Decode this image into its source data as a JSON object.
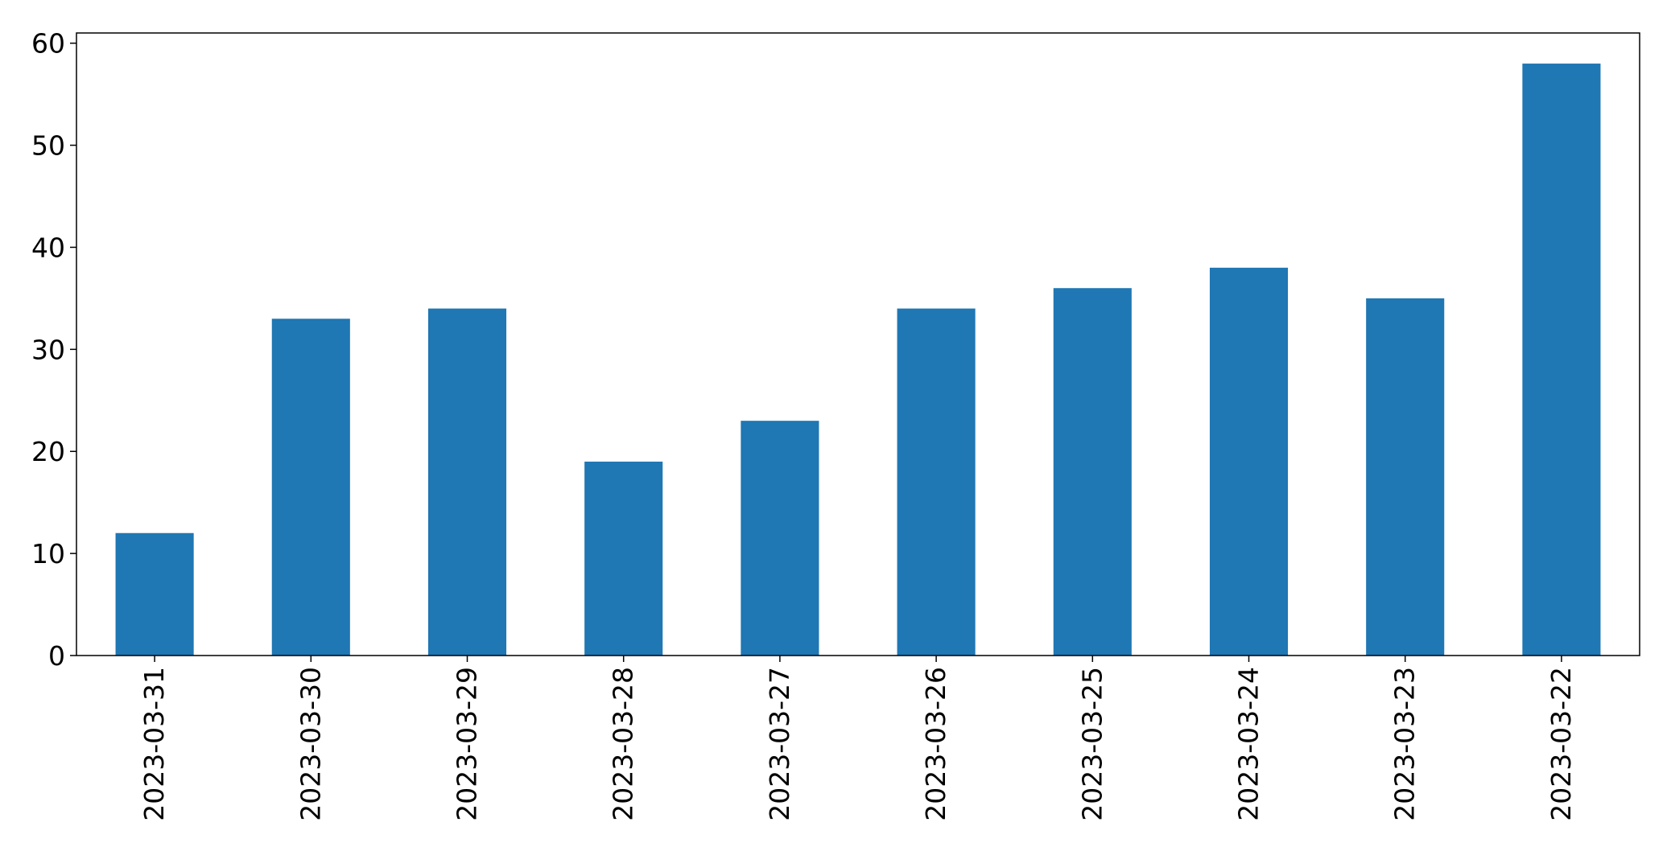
{
  "chart_data": {
    "type": "bar",
    "title": "",
    "xlabel": "",
    "ylabel": "",
    "categories": [
      "2023-03-31",
      "2023-03-30",
      "2023-03-29",
      "2023-03-28",
      "2023-03-27",
      "2023-03-26",
      "2023-03-25",
      "2023-03-24",
      "2023-03-23",
      "2023-03-22"
    ],
    "values": [
      12,
      33,
      34,
      19,
      23,
      34,
      36,
      38,
      35,
      58
    ],
    "ylim": [
      0,
      61
    ],
    "yticks": [
      0,
      10,
      20,
      30,
      40,
      50,
      60
    ],
    "grid": false,
    "legend": "none",
    "bar_color": "#1f77b4",
    "x_tick_rotation": "vertical"
  }
}
